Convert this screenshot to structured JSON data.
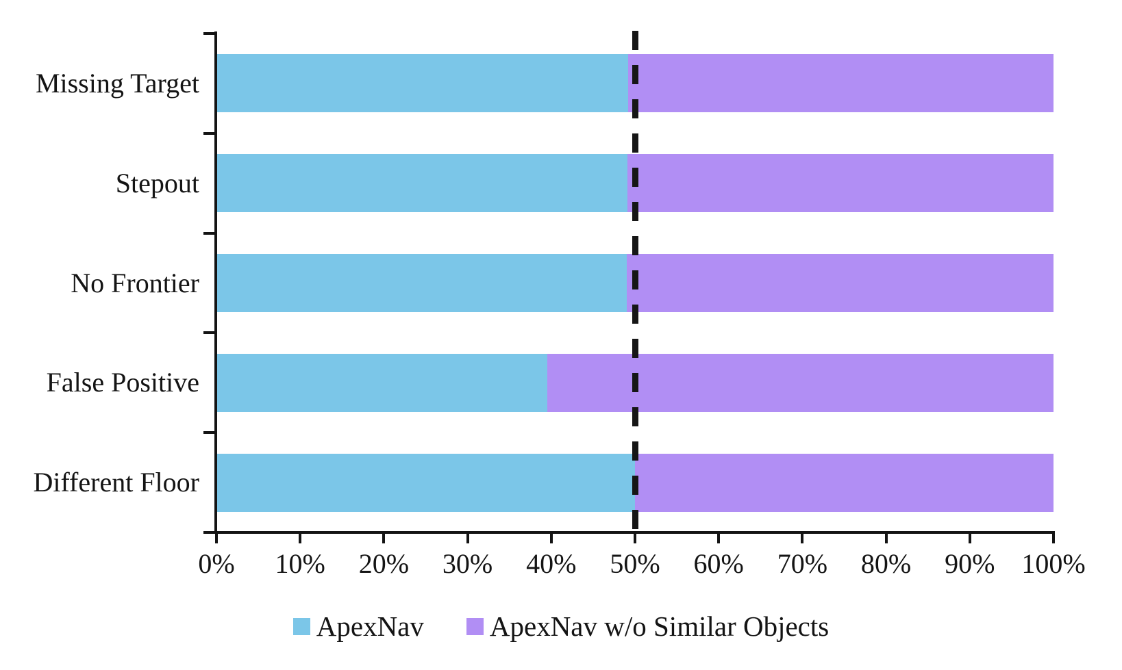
{
  "chart_data": {
    "type": "bar",
    "orientation": "horizontal",
    "stacked": true,
    "unit": "%",
    "categories": [
      "Missing Target",
      "Stepout",
      "No Frontier",
      "False Positive",
      "Different Floor"
    ],
    "series": [
      {
        "name": "ApexNav",
        "color": "#7BC6E8",
        "values": [
          49.2,
          49.1,
          49.0,
          39.5,
          50.0
        ]
      },
      {
        "name": "ApexNav w/o Similar Objects",
        "color": "#B18EF4",
        "values": [
          50.8,
          50.9,
          51.0,
          60.5,
          50.0
        ]
      }
    ],
    "x_ticks": [
      "0%",
      "10%",
      "20%",
      "30%",
      "40%",
      "50%",
      "60%",
      "70%",
      "80%",
      "90%",
      "100%"
    ],
    "xlim": [
      0,
      100
    ],
    "reference_line": {
      "value": 50,
      "style": "dashed",
      "color": "#161616"
    },
    "legend_position": "bottom",
    "grid": false,
    "axis_color": "#141414",
    "text_color": "#141414"
  }
}
